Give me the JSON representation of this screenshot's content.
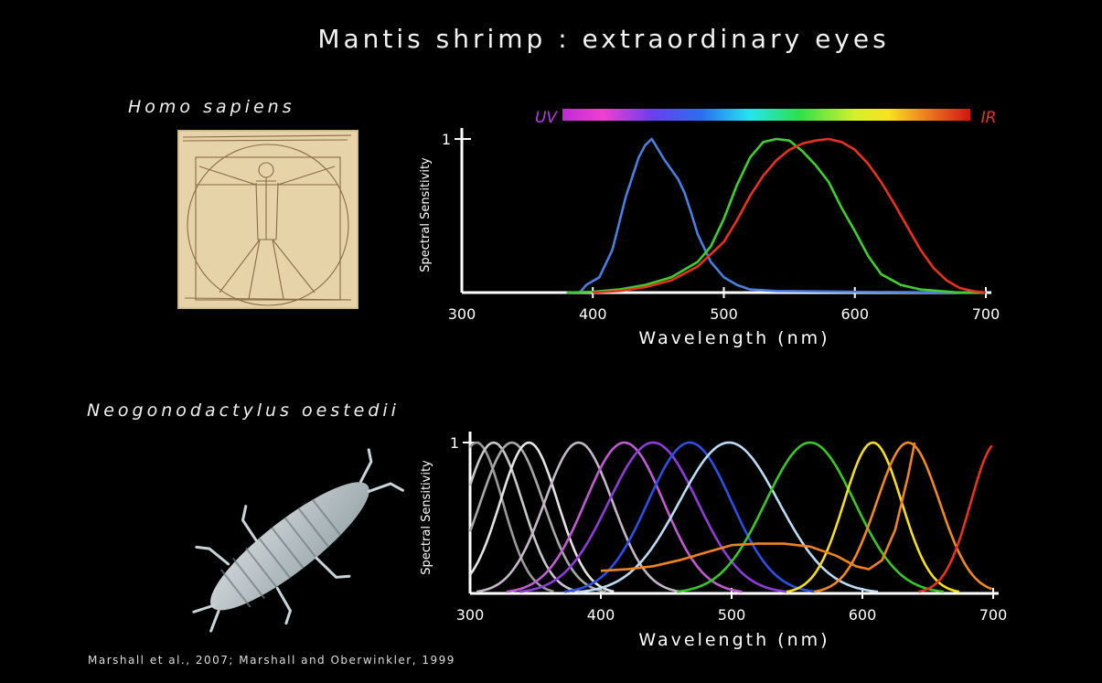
{
  "title": "Mantis shrimp : extraordinary eyes",
  "species_top": "Homo sapiens",
  "species_bottom": "Neogonodactylus oestedii",
  "citation": "Marshall et al., 2007; Marshall and Oberwinkler, 1999",
  "colors": {
    "background": "#000000",
    "human_blue": "#4a7fe0",
    "human_green": "#3fcf2f",
    "human_red": "#e8321e",
    "uv_label": "#b13fe0",
    "ir_label": "#e5302a"
  },
  "chart_data": [
    {
      "type": "line",
      "spectrum_bar": {
        "left_label": "UV",
        "right_label": "IR"
      },
      "xlabel": "Wavelength  (nm)",
      "ylabel": "Spectral Sensitivity",
      "xlim": [
        300,
        700
      ],
      "ylim": [
        0,
        1
      ],
      "x_ticks": [
        "300",
        "400",
        "500",
        "600",
        "700"
      ],
      "y_ticks": [
        "1"
      ],
      "grid": false,
      "series": [
        {
          "color": "#4a7fe0",
          "points": [
            [
              390,
              0
            ],
            [
              395,
              0.05
            ],
            [
              405,
              0.1
            ],
            [
              415,
              0.28
            ],
            [
              425,
              0.62
            ],
            [
              435,
              0.88
            ],
            [
              440,
              0.96
            ],
            [
              445,
              1.0
            ],
            [
              450,
              0.93
            ],
            [
              455,
              0.86
            ],
            [
              460,
              0.8
            ],
            [
              465,
              0.74
            ],
            [
              470,
              0.65
            ],
            [
              475,
              0.52
            ],
            [
              480,
              0.38
            ],
            [
              490,
              0.2
            ],
            [
              500,
              0.1
            ],
            [
              510,
              0.05
            ],
            [
              520,
              0.02
            ],
            [
              540,
              0.01
            ],
            [
              600,
              0.005
            ],
            [
              700,
              0
            ]
          ]
        },
        {
          "color": "#3fcf2f",
          "points": [
            [
              380,
              0
            ],
            [
              400,
              0.005
            ],
            [
              420,
              0.02
            ],
            [
              440,
              0.05
            ],
            [
              460,
              0.1
            ],
            [
              480,
              0.2
            ],
            [
              490,
              0.3
            ],
            [
              500,
              0.48
            ],
            [
              510,
              0.7
            ],
            [
              520,
              0.88
            ],
            [
              530,
              0.98
            ],
            [
              540,
              1.0
            ],
            [
              550,
              0.99
            ],
            [
              560,
              0.92
            ],
            [
              570,
              0.83
            ],
            [
              580,
              0.72
            ],
            [
              590,
              0.55
            ],
            [
              600,
              0.4
            ],
            [
              610,
              0.24
            ],
            [
              620,
              0.12
            ],
            [
              635,
              0.05
            ],
            [
              650,
              0.02
            ],
            [
              680,
              0
            ],
            [
              700,
              0
            ]
          ]
        },
        {
          "color": "#e8321e",
          "points": [
            [
              400,
              0
            ],
            [
              420,
              0.01
            ],
            [
              440,
              0.035
            ],
            [
              460,
              0.08
            ],
            [
              480,
              0.17
            ],
            [
              500,
              0.33
            ],
            [
              510,
              0.47
            ],
            [
              520,
              0.63
            ],
            [
              530,
              0.76
            ],
            [
              540,
              0.86
            ],
            [
              550,
              0.93
            ],
            [
              560,
              0.97
            ],
            [
              570,
              0.99
            ],
            [
              580,
              1.0
            ],
            [
              590,
              0.98
            ],
            [
              600,
              0.93
            ],
            [
              610,
              0.84
            ],
            [
              620,
              0.72
            ],
            [
              630,
              0.58
            ],
            [
              640,
              0.43
            ],
            [
              650,
              0.28
            ],
            [
              660,
              0.16
            ],
            [
              670,
              0.08
            ],
            [
              680,
              0.03
            ],
            [
              690,
              0.01
            ],
            [
              700,
              0
            ]
          ]
        }
      ]
    },
    {
      "type": "line",
      "xlabel": "Wavelength  (nm)",
      "ylabel": "Spectral Sensitivity",
      "xlim": [
        300,
        700
      ],
      "ylim": [
        0,
        1
      ],
      "x_ticks": [
        "300",
        "400",
        "500",
        "600",
        "700"
      ],
      "y_ticks": [
        "1"
      ],
      "grid": false,
      "series": [
        {
          "color": "#9a9a9a",
          "peak": 305,
          "width": 20
        },
        {
          "color": "#c8c8c8",
          "peak": 318,
          "width": 22
        },
        {
          "color": "#a8a8a8",
          "peak": 332,
          "width": 24
        },
        {
          "color": "#e4e4e4",
          "peak": 345,
          "width": 22
        },
        {
          "color": "#c4b8c8",
          "peak": 383,
          "width": 26
        },
        {
          "color": "#c05cd2",
          "peak": 418,
          "width": 30
        },
        {
          "color": "#8e3dd8",
          "peak": 440,
          "width": 34
        },
        {
          "color": "#2f4fe4",
          "peak": 468,
          "width": 32
        },
        {
          "color": "#bcdcf6",
          "peak": 498,
          "width": 38
        },
        {
          "color": "#39c827",
          "peak": 560,
          "width": 34
        },
        {
          "color": "#f4e01e",
          "peak": 608,
          "width": 22
        },
        {
          "color": "#f08a1e",
          "peak": 635,
          "width": 24
        },
        {
          "color": "#e8321e",
          "peak": 703,
          "width": 20
        },
        {
          "color": "#ee8420",
          "points": [
            [
              400,
              0.15
            ],
            [
              420,
              0.16
            ],
            [
              440,
              0.18
            ],
            [
              460,
              0.22
            ],
            [
              480,
              0.27
            ],
            [
              500,
              0.32
            ],
            [
              520,
              0.33
            ],
            [
              540,
              0.33
            ],
            [
              560,
              0.31
            ],
            [
              580,
              0.25
            ],
            [
              595,
              0.18
            ],
            [
              605,
              0.16
            ],
            [
              615,
              0.22
            ],
            [
              625,
              0.42
            ],
            [
              635,
              0.78
            ],
            [
              640,
              1.0
            ]
          ]
        }
      ]
    }
  ]
}
